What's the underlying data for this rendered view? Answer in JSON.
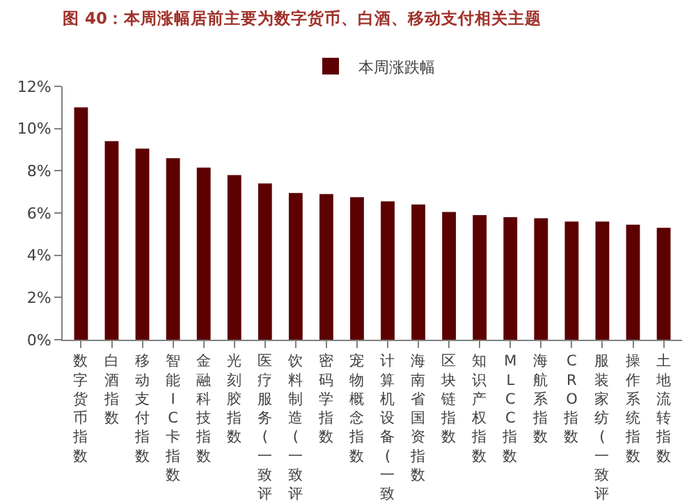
{
  "chart_data": {
    "type": "bar",
    "title": "图 40：本周涨幅居前主要为数字货币、白酒、移动支付相关主题",
    "categories": [
      "数字货币指数",
      "白酒指数",
      "移动支付指数",
      "智能IC卡指数",
      "金融科技指数",
      "光刻胶指数",
      "医疗服务(一致评",
      "饮料制造(一致评",
      "密码学指数",
      "宠物概念指数",
      "计算机设备(一致",
      "海南省国资指数",
      "区块链指数",
      "知识产权指数",
      "MLCC指数",
      "海航系指数",
      "CRO指数",
      "服装家纺(一致评",
      "操作系统指数",
      "土地流转指数"
    ],
    "series": [
      {
        "name": "本周涨跌幅",
        "color": "#5c0000",
        "values": [
          11.0,
          9.4,
          9.05,
          8.6,
          8.15,
          7.8,
          7.4,
          6.95,
          6.9,
          6.75,
          6.55,
          6.4,
          6.05,
          5.9,
          5.8,
          5.75,
          5.6,
          5.6,
          5.45,
          5.3
        ]
      }
    ],
    "ylim": [
      0,
      12
    ],
    "yticks": [
      {
        "value": 0,
        "label": "0%"
      },
      {
        "value": 2,
        "label": "2%"
      },
      {
        "value": 4,
        "label": "4%"
      },
      {
        "value": 6,
        "label": "6%"
      },
      {
        "value": 8,
        "label": "8%"
      },
      {
        "value": 10,
        "label": "10%"
      },
      {
        "value": 12,
        "label": "12%"
      }
    ],
    "legend": "top"
  }
}
